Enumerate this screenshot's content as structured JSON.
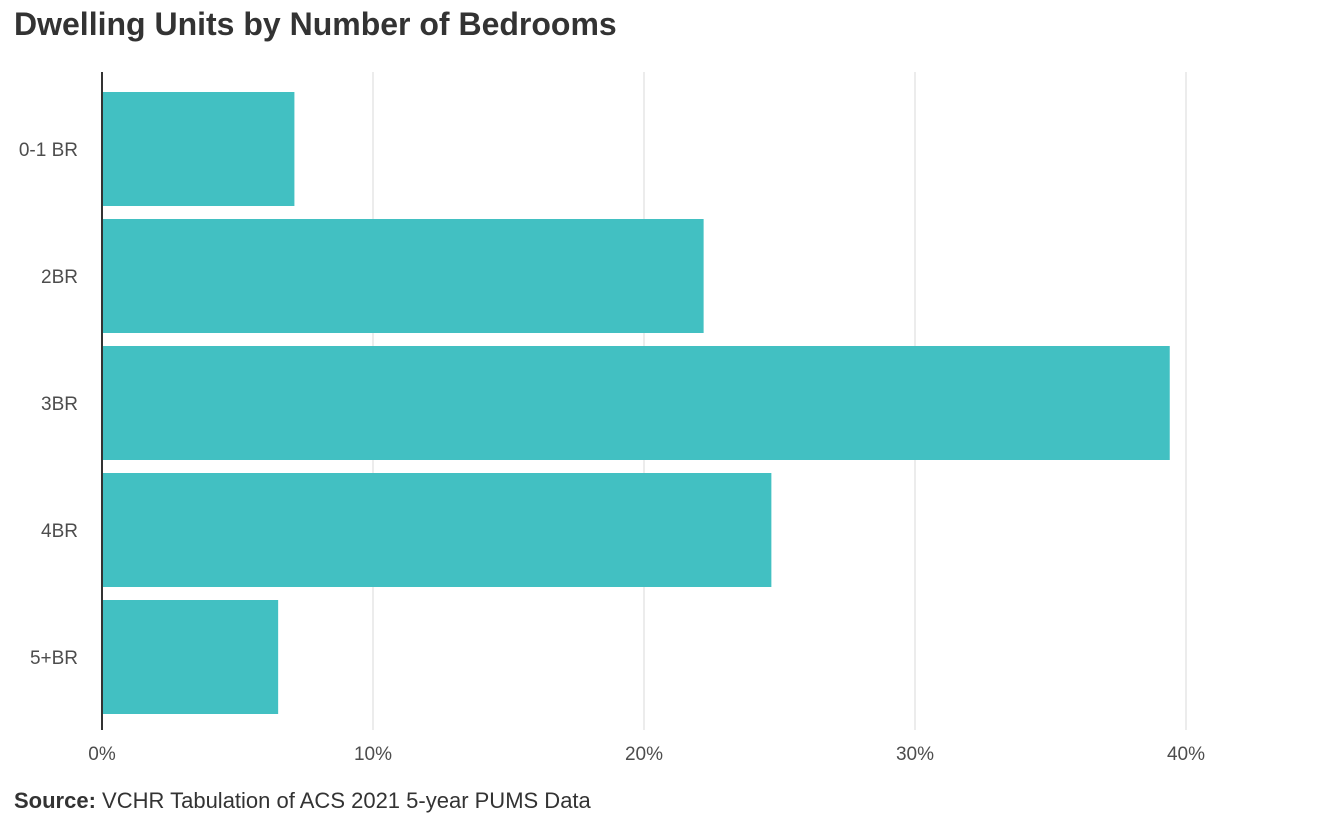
{
  "title": "Dwelling Units by Number of Bedrooms",
  "source": {
    "label": "Source:",
    "text": "VCHR Tabulation of ACS 2021 5-year PUMS Data"
  },
  "colors": {
    "bar": "#42c0c2",
    "grid": "#d9d9d9",
    "axis": "#333333"
  },
  "chart_data": {
    "type": "bar",
    "orientation": "horizontal",
    "title": "Dwelling Units by Number of Bedrooms",
    "categories": [
      "0-1 BR",
      "2BR",
      "3BR",
      "4BR",
      "5+BR"
    ],
    "values": [
      7.1,
      22.2,
      39.4,
      24.7,
      6.5
    ],
    "unit": "%",
    "xlim": [
      0,
      43
    ],
    "xticks": [
      0,
      10,
      20,
      30,
      40
    ],
    "xtick_labels": [
      "0%",
      "10%",
      "20%",
      "30%",
      "40%"
    ],
    "xlabel": "",
    "ylabel": "",
    "grid": "vertical",
    "legend": "none"
  }
}
